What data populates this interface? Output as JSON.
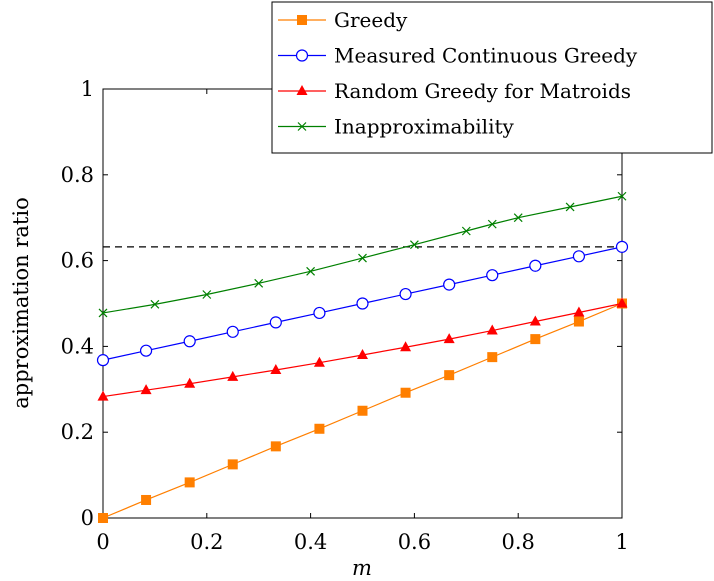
{
  "chart_data": {
    "type": "line",
    "xlabel": "m",
    "ylabel": "approximation ratio",
    "xlim": [
      0,
      1
    ],
    "ylim": [
      0,
      1
    ],
    "xticks": [
      "0",
      "0.2",
      "0.4",
      "0.6",
      "0.8",
      "1"
    ],
    "yticks": [
      "0",
      "0.2",
      "0.4",
      "0.6",
      "0.8",
      "1"
    ],
    "grid": false,
    "legend_position": "top-right",
    "reference_line": {
      "y": 0.632,
      "style": "dashed",
      "color": "#000000"
    },
    "series": [
      {
        "name": "Greedy",
        "color": "#ff7f00",
        "marker": "square",
        "points": [
          [
            0,
            0
          ],
          [
            0.083,
            0.042
          ],
          [
            0.167,
            0.083
          ],
          [
            0.25,
            0.125
          ],
          [
            0.333,
            0.167
          ],
          [
            0.417,
            0.208
          ],
          [
            0.5,
            0.25
          ],
          [
            0.583,
            0.292
          ],
          [
            0.667,
            0.333
          ],
          [
            0.75,
            0.375
          ],
          [
            0.833,
            0.417
          ],
          [
            0.917,
            0.458
          ],
          [
            1,
            0.5
          ]
        ]
      },
      {
        "name": "Measured Continuous Greedy",
        "color": "#0000ff",
        "marker": "circle",
        "points": [
          [
            0,
            0.368
          ],
          [
            0.083,
            0.39
          ],
          [
            0.167,
            0.412
          ],
          [
            0.25,
            0.434
          ],
          [
            0.333,
            0.456
          ],
          [
            0.417,
            0.478
          ],
          [
            0.5,
            0.5
          ],
          [
            0.583,
            0.522
          ],
          [
            0.667,
            0.544
          ],
          [
            0.75,
            0.566
          ],
          [
            0.833,
            0.588
          ],
          [
            0.917,
            0.61
          ],
          [
            1,
            0.632
          ]
        ]
      },
      {
        "name": "Random Greedy for Matroids",
        "color": "#ff0000",
        "marker": "triangle",
        "points": [
          [
            0,
            0.283
          ],
          [
            0.083,
            0.298
          ],
          [
            0.167,
            0.313
          ],
          [
            0.25,
            0.329
          ],
          [
            0.333,
            0.345
          ],
          [
            0.417,
            0.362
          ],
          [
            0.5,
            0.38
          ],
          [
            0.583,
            0.398
          ],
          [
            0.667,
            0.417
          ],
          [
            0.75,
            0.437
          ],
          [
            0.833,
            0.458
          ],
          [
            0.917,
            0.479
          ],
          [
            1,
            0.5
          ]
        ]
      },
      {
        "name": "Inapproximability",
        "color": "#008000",
        "marker": "cross",
        "points": [
          [
            0,
            0.478
          ],
          [
            0.1,
            0.498
          ],
          [
            0.2,
            0.521
          ],
          [
            0.3,
            0.547
          ],
          [
            0.4,
            0.575
          ],
          [
            0.5,
            0.606
          ],
          [
            0.6,
            0.637
          ],
          [
            0.7,
            0.669
          ],
          [
            0.75,
            0.685
          ],
          [
            0.8,
            0.7
          ],
          [
            0.9,
            0.725
          ],
          [
            1,
            0.75
          ]
        ]
      }
    ]
  }
}
